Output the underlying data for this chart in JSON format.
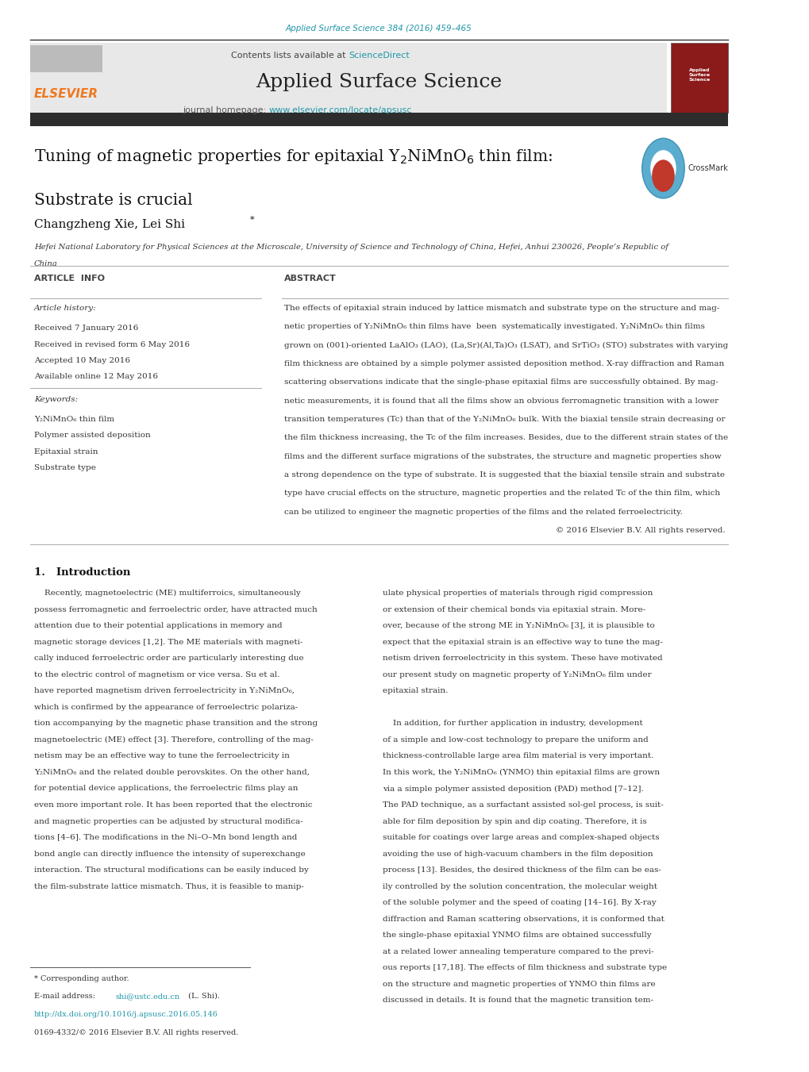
{
  "page_width": 10.2,
  "page_height": 13.51,
  "bg_color": "#ffffff",
  "top_journal_text": "Applied Surface Science 384 (2016) 459–465",
  "top_journal_color": "#2196a8",
  "contents_text": "Contents lists available at ",
  "science_direct_text": "ScienceDirect",
  "science_direct_color": "#2196a8",
  "journal_name": "Applied Surface Science",
  "journal_homepage_text": "journal homepage: ",
  "journal_url": "www.elsevier.com/locate/apsusc",
  "journal_url_color": "#2196a8",
  "header_bg_color": "#e8e8e8",
  "elsevier_color": "#f07820",
  "dark_bar_color": "#2d2d2d",
  "title_line1": "Tuning of magnetic properties for epitaxial Y$_2$NiMnO$_6$ thin film:",
  "title_line2": "Substrate is crucial",
  "authors": "Changzheng Xie, Lei Shi",
  "affiliation_line1": "Hefei National Laboratory for Physical Sciences at the Microscale, University of Science and Technology of China, Hefei, Anhui 230026, People’s Republic of",
  "affiliation_line2": "China",
  "article_info_header": "ARTICLE  INFO",
  "abstract_header": "ABSTRACT",
  "article_history_label": "Article history:",
  "received_date": "Received 7 January 2016",
  "revised_date": "Received in revised form 6 May 2016",
  "accepted_date": "Accepted 10 May 2016",
  "available_date": "Available online 12 May 2016",
  "keywords_label": "Keywords:",
  "keyword1": "Y₂NiMnO₆ thin film",
  "keyword2": "Polymer assisted deposition",
  "keyword3": "Epitaxial strain",
  "keyword4": "Substrate type",
  "abstract_lines": [
    "The effects of epitaxial strain induced by lattice mismatch and substrate type on the structure and mag-",
    "netic properties of Y₂NiMnO₆ thin films have  been  systematically investigated. Y₂NiMnO₆ thin films",
    "grown on (001)-oriented LaAlO₃ (LAO), (La,Sr)(Al,Ta)O₃ (LSAT), and SrTiO₃ (STO) substrates with varying",
    "film thickness are obtained by a simple polymer assisted deposition method. X-ray diffraction and Raman",
    "scattering observations indicate that the single-phase epitaxial films are successfully obtained. By mag-",
    "netic measurements, it is found that all the films show an obvious ferromagnetic transition with a lower",
    "transition temperatures (Tc) than that of the Y₂NiMnO₆ bulk. With the biaxial tensile strain decreasing or",
    "the film thickness increasing, the Tc of the film increases. Besides, due to the different strain states of the",
    "films and the different surface migrations of the substrates, the structure and magnetic properties show",
    "a strong dependence on the type of substrate. It is suggested that the biaxial tensile strain and substrate",
    "type have crucial effects on the structure, magnetic properties and the related Tc of the thin film, which",
    "can be utilized to engineer the magnetic properties of the films and the related ferroelectricity."
  ],
  "copyright_text": "© 2016 Elsevier B.V. All rights reserved.",
  "intro_header": "1.   Introduction",
  "intro_left_lines": [
    "    Recently, magnetoelectric (ME) multiferroics, simultaneously",
    "possess ferromagnetic and ferroelectric order, have attracted much",
    "attention due to their potential applications in memory and",
    "magnetic storage devices [1,2]. The ME materials with magneti-",
    "cally induced ferroelectric order are particularly interesting due",
    "to the electric control of magnetism or vice versa. Su et al.",
    "have reported magnetism driven ferroelectricity in Y₂NiMnO₆,",
    "which is confirmed by the appearance of ferroelectric polariza-",
    "tion accompanying by the magnetic phase transition and the strong",
    "magnetoelectric (ME) effect [3]. Therefore, controlling of the mag-",
    "netism may be an effective way to tune the ferroelectricity in",
    "Y₂NiMnO₆ and the related double perovskites. On the other hand,",
    "for potential device applications, the ferroelectric films play an",
    "even more important role. It has been reported that the electronic",
    "and magnetic properties can be adjusted by structural modifica-",
    "tions [4–6]. The modifications in the Ni–O–Mn bond length and",
    "bond angle can directly influence the intensity of superexchange",
    "interaction. The structural modifications can be easily induced by",
    "the film-substrate lattice mismatch. Thus, it is feasible to manip-"
  ],
  "intro_right_lines": [
    "ulate physical properties of materials through rigid compression",
    "or extension of their chemical bonds via epitaxial strain. More-",
    "over, because of the strong ME in Y₂NiMnO₆ [3], it is plausible to",
    "expect that the epitaxial strain is an effective way to tune the mag-",
    "netism driven ferroelectricity in this system. These have motivated",
    "our present study on magnetic property of Y₂NiMnO₆ film under",
    "epitaxial strain.",
    "",
    "    In addition, for further application in industry, development",
    "of a simple and low-cost technology to prepare the uniform and",
    "thickness-controllable large area film material is very important.",
    "In this work, the Y₂NiMnO₆ (YNMO) thin epitaxial films are grown",
    "via a simple polymer assisted deposition (PAD) method [7–12].",
    "The PAD technique, as a surfactant assisted sol-gel process, is suit-",
    "able for film deposition by spin and dip coating. Therefore, it is",
    "suitable for coatings over large areas and complex-shaped objects",
    "avoiding the use of high-vacuum chambers in the film deposition",
    "process [13]. Besides, the desired thickness of the film can be eas-",
    "ily controlled by the solution concentration, the molecular weight",
    "of the soluble polymer and the speed of coating [14–16]. By X-ray",
    "diffraction and Raman scattering observations, it is conformed that",
    "the single-phase epitaxial YNMO films are obtained successfully",
    "at a related lower annealing temperature compared to the previ-",
    "ous reports [17,18]. The effects of film thickness and substrate type",
    "on the structure and magnetic properties of YNMO thin films are",
    "discussed in details. It is found that the magnetic transition tem-"
  ],
  "footer_corresponding": "* Corresponding author.",
  "footer_email_label": "E-mail address: ",
  "footer_email": "shi@ustc.edu.cn",
  "footer_email_color": "#2196a8",
  "footer_email_suffix": " (L. Shi).",
  "footer_doi": "http://dx.doi.org/10.1016/j.apsusc.2016.05.146",
  "footer_doi_color": "#2196a8",
  "footer_issn": "0169-4332/© 2016 Elsevier B.V. All rights reserved."
}
